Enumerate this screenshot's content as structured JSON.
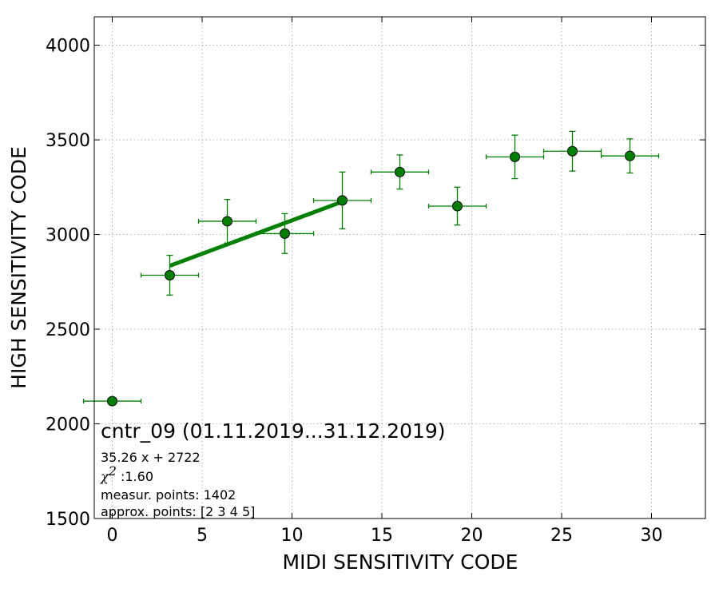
{
  "chart_data": {
    "type": "scatter",
    "title": "",
    "xlabel": "MIDI SENSITIVITY CODE",
    "ylabel": "HIGH SENSITIVITY CODE",
    "xlim": [
      -1,
      33
    ],
    "ylim": [
      1500,
      4150
    ],
    "x_ticks": [
      0,
      5,
      10,
      15,
      20,
      25,
      30
    ],
    "y_ticks": [
      1500,
      2000,
      2500,
      3000,
      3500,
      4000
    ],
    "grid": true,
    "colors": {
      "points": "#008000",
      "fit_line": "#008000",
      "marker_edge": "#000000",
      "grid": "#b0b0b0"
    },
    "series": [
      {
        "points": [
          {
            "x": 0.0,
            "y": 2120,
            "xerr": 1.6,
            "yerr": 0
          },
          {
            "x": 3.2,
            "y": 2785,
            "xerr": 1.6,
            "yerr": 105
          },
          {
            "x": 6.4,
            "y": 3070,
            "xerr": 1.6,
            "yerr": 115
          },
          {
            "x": 9.6,
            "y": 3005,
            "xerr": 1.6,
            "yerr": 105
          },
          {
            "x": 12.8,
            "y": 3180,
            "xerr": 1.6,
            "yerr": 150
          },
          {
            "x": 16.0,
            "y": 3330,
            "xerr": 1.6,
            "yerr": 90
          },
          {
            "x": 19.2,
            "y": 3150,
            "xerr": 1.6,
            "yerr": 100
          },
          {
            "x": 22.4,
            "y": 3410,
            "xerr": 1.6,
            "yerr": 115
          },
          {
            "x": 25.6,
            "y": 3440,
            "xerr": 1.6,
            "yerr": 105
          },
          {
            "x": 28.8,
            "y": 3415,
            "xerr": 1.6,
            "yerr": 90
          }
        ]
      }
    ],
    "fit": {
      "slope": 35.26,
      "intercept": 2722,
      "x_start": 3.2,
      "x_end": 12.8
    },
    "annotations": {
      "title": "cntr_09 (01.11.2019...31.12.2019)",
      "equation": "35.26 x + 2722",
      "chi_symbol": "χ",
      "chi_sup": "2",
      "chi_value": " :1.60",
      "measur_points": "measur. points: 1402",
      "approx_points": "approx. points: [2 3 4 5]"
    }
  }
}
